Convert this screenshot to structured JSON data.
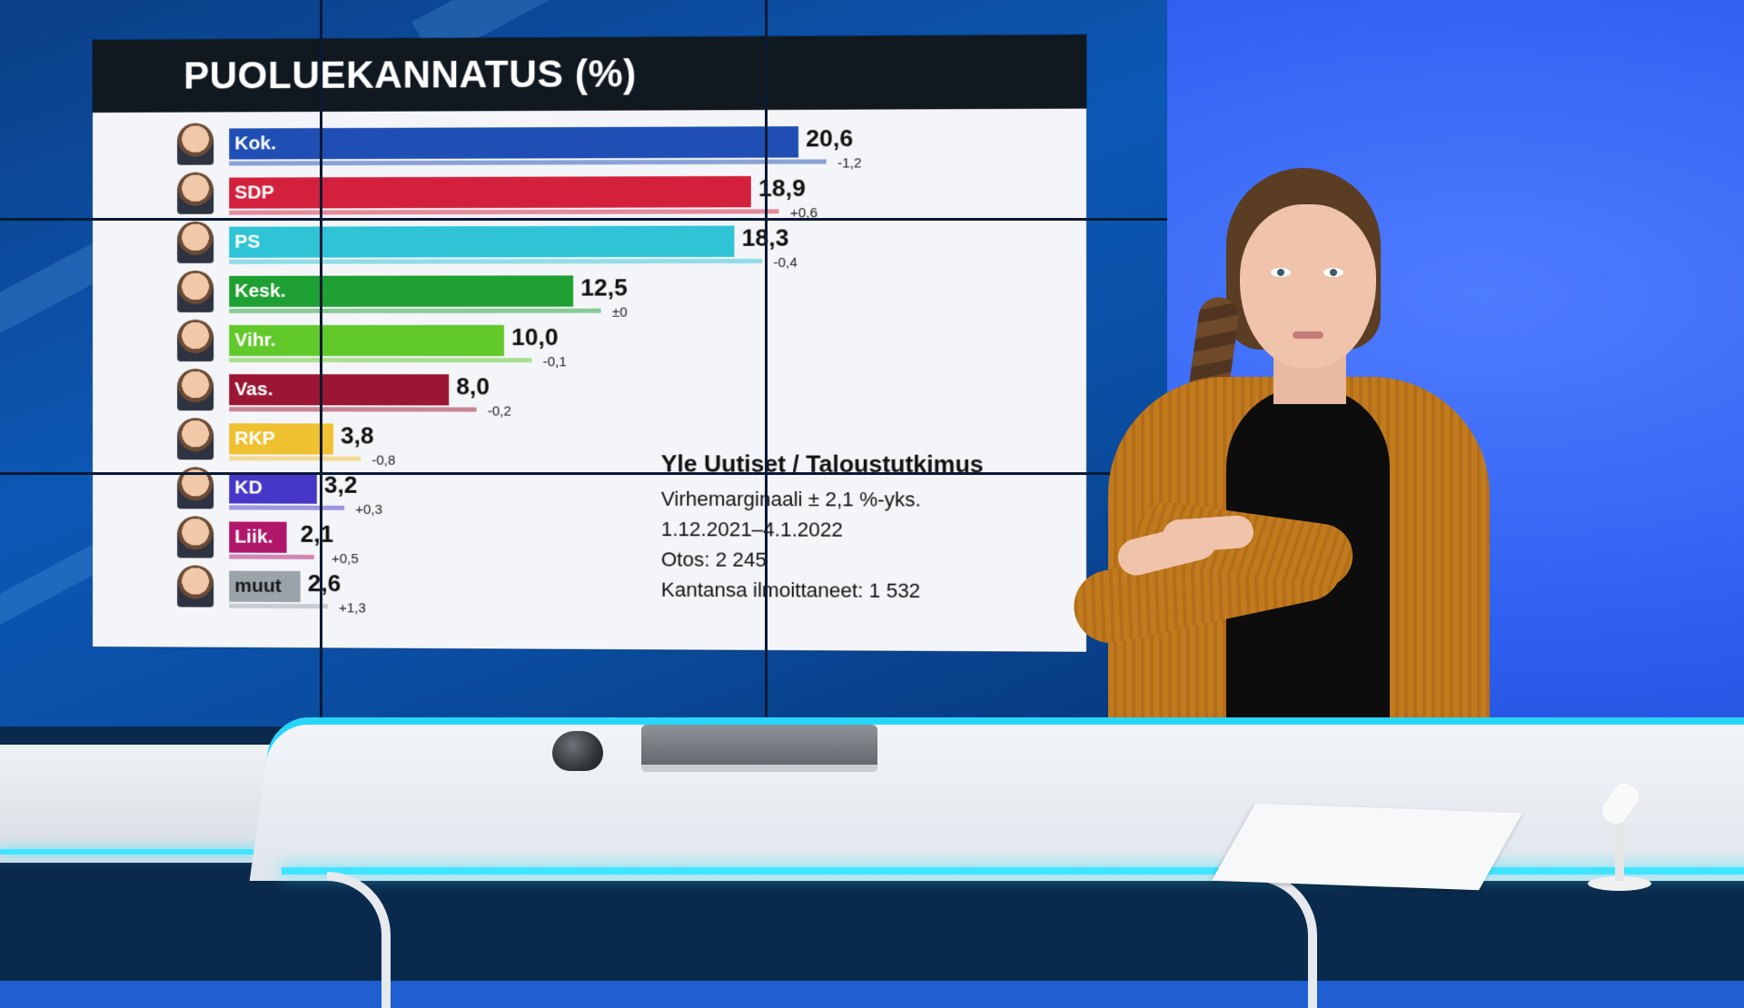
{
  "panel": {
    "title": "PUOLUEKANNATUS (%)"
  },
  "colors": {
    "header_bg": "#101820",
    "panel_bg": "#f4f5f8",
    "desk_glow": "#3fe4ff"
  },
  "parties": [
    {
      "label": "Kok.",
      "value": "20,6",
      "change": "-1,2",
      "pct": 20.6,
      "color": "#1f4fb5"
    },
    {
      "label": "SDP",
      "value": "18,9",
      "change": "+0,6",
      "pct": 18.9,
      "color": "#d3213d"
    },
    {
      "label": "PS",
      "value": "18,3",
      "change": "-0,4",
      "pct": 18.3,
      "color": "#2ec4d6"
    },
    {
      "label": "Kesk.",
      "value": "12,5",
      "change": "±0",
      "pct": 12.5,
      "color": "#1ea032"
    },
    {
      "label": "Vihr.",
      "value": "10,0",
      "change": "-0,1",
      "pct": 10.0,
      "color": "#62c92b"
    },
    {
      "label": "Vas.",
      "value": "8,0",
      "change": "-0,2",
      "pct": 8.0,
      "color": "#9b1633"
    },
    {
      "label": "RKP",
      "value": "3,8",
      "change": "-0,8",
      "pct": 3.8,
      "color": "#efc02f"
    },
    {
      "label": "KD",
      "value": "3,2",
      "change": "+0,3",
      "pct": 3.2,
      "color": "#4637c9"
    },
    {
      "label": "Liik.",
      "value": "2,1",
      "change": "+0,5",
      "pct": 2.1,
      "color": "#b0176b"
    },
    {
      "label": "muut",
      "value": "2,6",
      "change": "+1,3",
      "pct": 2.6,
      "color": "#9aa3aa"
    }
  ],
  "source": {
    "title": "Yle Uutiset / Taloustutkimus",
    "lines": [
      "Virhemarginaali ± 2,1 %-yks.",
      "1.12.2021–4.1.2022",
      "Otos: 2 245",
      "Kantansa ilmoittaneet: 1 532"
    ]
  }
}
